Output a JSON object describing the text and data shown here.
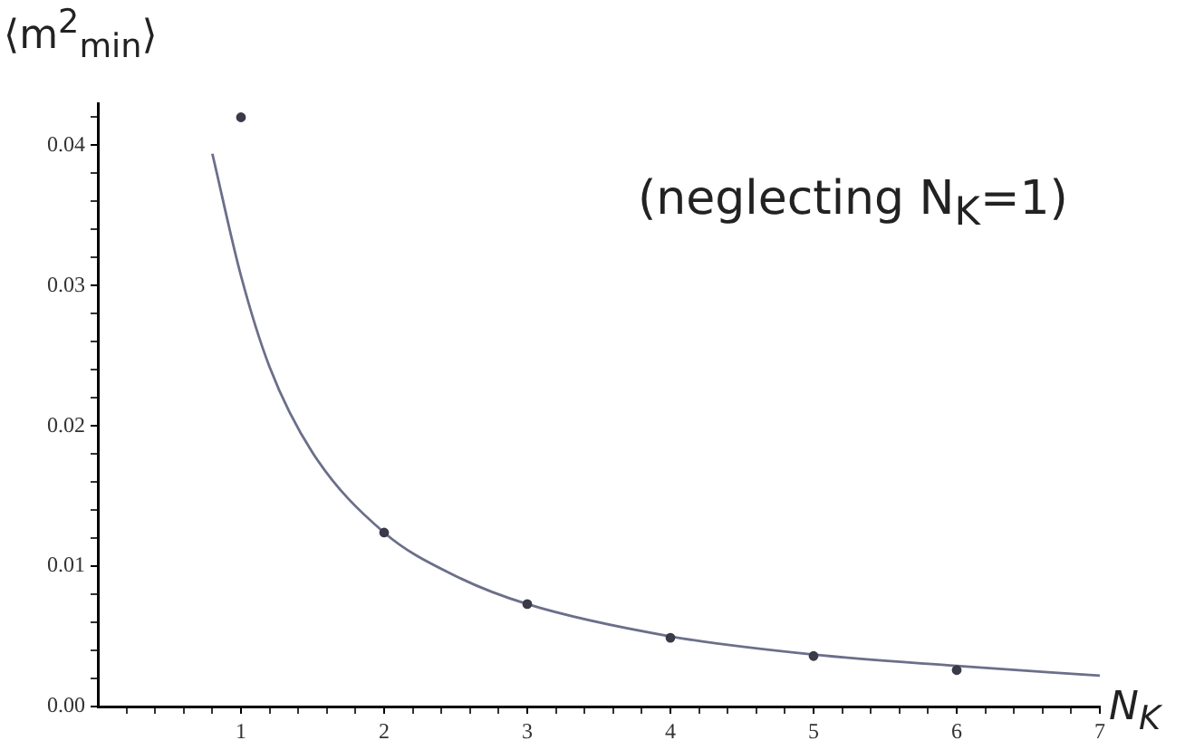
{
  "chart_data": {
    "type": "scatter",
    "xlabel": "N$_{K}$",
    "ylabel": "⟨m$^{2}$$_{min}$⟩",
    "annotations": [
      "(neglecting N$_{K}$=1)"
    ],
    "x": [
      1,
      2,
      3,
      4,
      5,
      6
    ],
    "series": [
      {
        "color": "#3a3a48",
        "marker": "circle",
        "values": [
          0.042,
          0.0124,
          0.0073,
          0.0049,
          0.0036,
          0.0026
        ]
      },
      {
        "type": "line",
        "marker": "none",
        "color": "#6b6f8a",
        "x": [
          0.8,
          1,
          1.2,
          1.5,
          2,
          2.5,
          3,
          4,
          5,
          6,
          7
        ],
        "values": [
          0.0394,
          0.0307,
          0.0242,
          0.0181,
          0.0124,
          0.0093,
          0.0073,
          0.005,
          0.0037,
          0.0029,
          0.0022
        ]
      }
    ],
    "line_style": "solid",
    "grid": false,
    "legend": false,
    "xlim": [
      0,
      7
    ],
    "ylim": [
      0,
      0.043
    ],
    "xticks": [
      {
        "value": 0.2,
        "label": null
      },
      {
        "value": 0.4,
        "label": null
      },
      {
        "value": 0.6,
        "label": null
      },
      {
        "value": 0.8,
        "label": null
      },
      1,
      {
        "value": 1.2,
        "label": null
      },
      {
        "value": 1.4,
        "label": null
      },
      {
        "value": 1.6,
        "label": null
      },
      {
        "value": 1.8,
        "label": null
      },
      2,
      {
        "value": 2.2,
        "label": null
      },
      {
        "value": 2.4,
        "label": null
      },
      {
        "value": 2.6,
        "label": null
      },
      {
        "value": 2.8,
        "label": null
      },
      3,
      {
        "value": 3.2,
        "label": null
      },
      {
        "value": 3.4,
        "label": null
      },
      {
        "value": 3.6,
        "label": null
      },
      {
        "value": 3.8,
        "label": null
      },
      4,
      {
        "value": 4.2,
        "label": null
      },
      {
        "value": 4.4,
        "label": null
      },
      {
        "value": 4.6,
        "label": null
      },
      {
        "value": 4.8,
        "label": null
      },
      5,
      {
        "value": 5.2,
        "label": null
      },
      {
        "value": 5.4,
        "label": null
      },
      {
        "value": 5.6,
        "label": null
      },
      {
        "value": 5.8,
        "label": null
      },
      6,
      {
        "value": 6.2,
        "label": null
      },
      {
        "value": 6.4,
        "label": null
      },
      {
        "value": 6.6,
        "label": null
      },
      {
        "value": 6.8,
        "label": null
      },
      7
    ],
    "yticks": [
      {
        "value": 0,
        "label": "0.00"
      },
      {
        "value": 0.002,
        "label": null
      },
      {
        "value": 0.004,
        "label": null
      },
      {
        "value": 0.006,
        "label": null
      },
      {
        "value": 0.008,
        "label": null
      },
      {
        "value": 0.01,
        "label": "0.01"
      },
      {
        "value": 0.012,
        "label": null
      },
      {
        "value": 0.014,
        "label": null
      },
      {
        "value": 0.016,
        "label": null
      },
      {
        "value": 0.018,
        "label": null
      },
      {
        "value": 0.02,
        "label": "0.02"
      },
      {
        "value": 0.022,
        "label": null
      },
      {
        "value": 0.024,
        "label": null
      },
      {
        "value": 0.026,
        "label": null
      },
      {
        "value": 0.028,
        "label": null
      },
      {
        "value": 0.03,
        "label": "0.03"
      },
      {
        "value": 0.032,
        "label": null
      },
      {
        "value": 0.034,
        "label": null
      },
      {
        "value": 0.036,
        "label": null
      },
      {
        "value": 0.038,
        "label": null
      },
      {
        "value": 0.04,
        "label": "0.04"
      },
      {
        "value": 0.042,
        "label": null
      }
    ]
  }
}
